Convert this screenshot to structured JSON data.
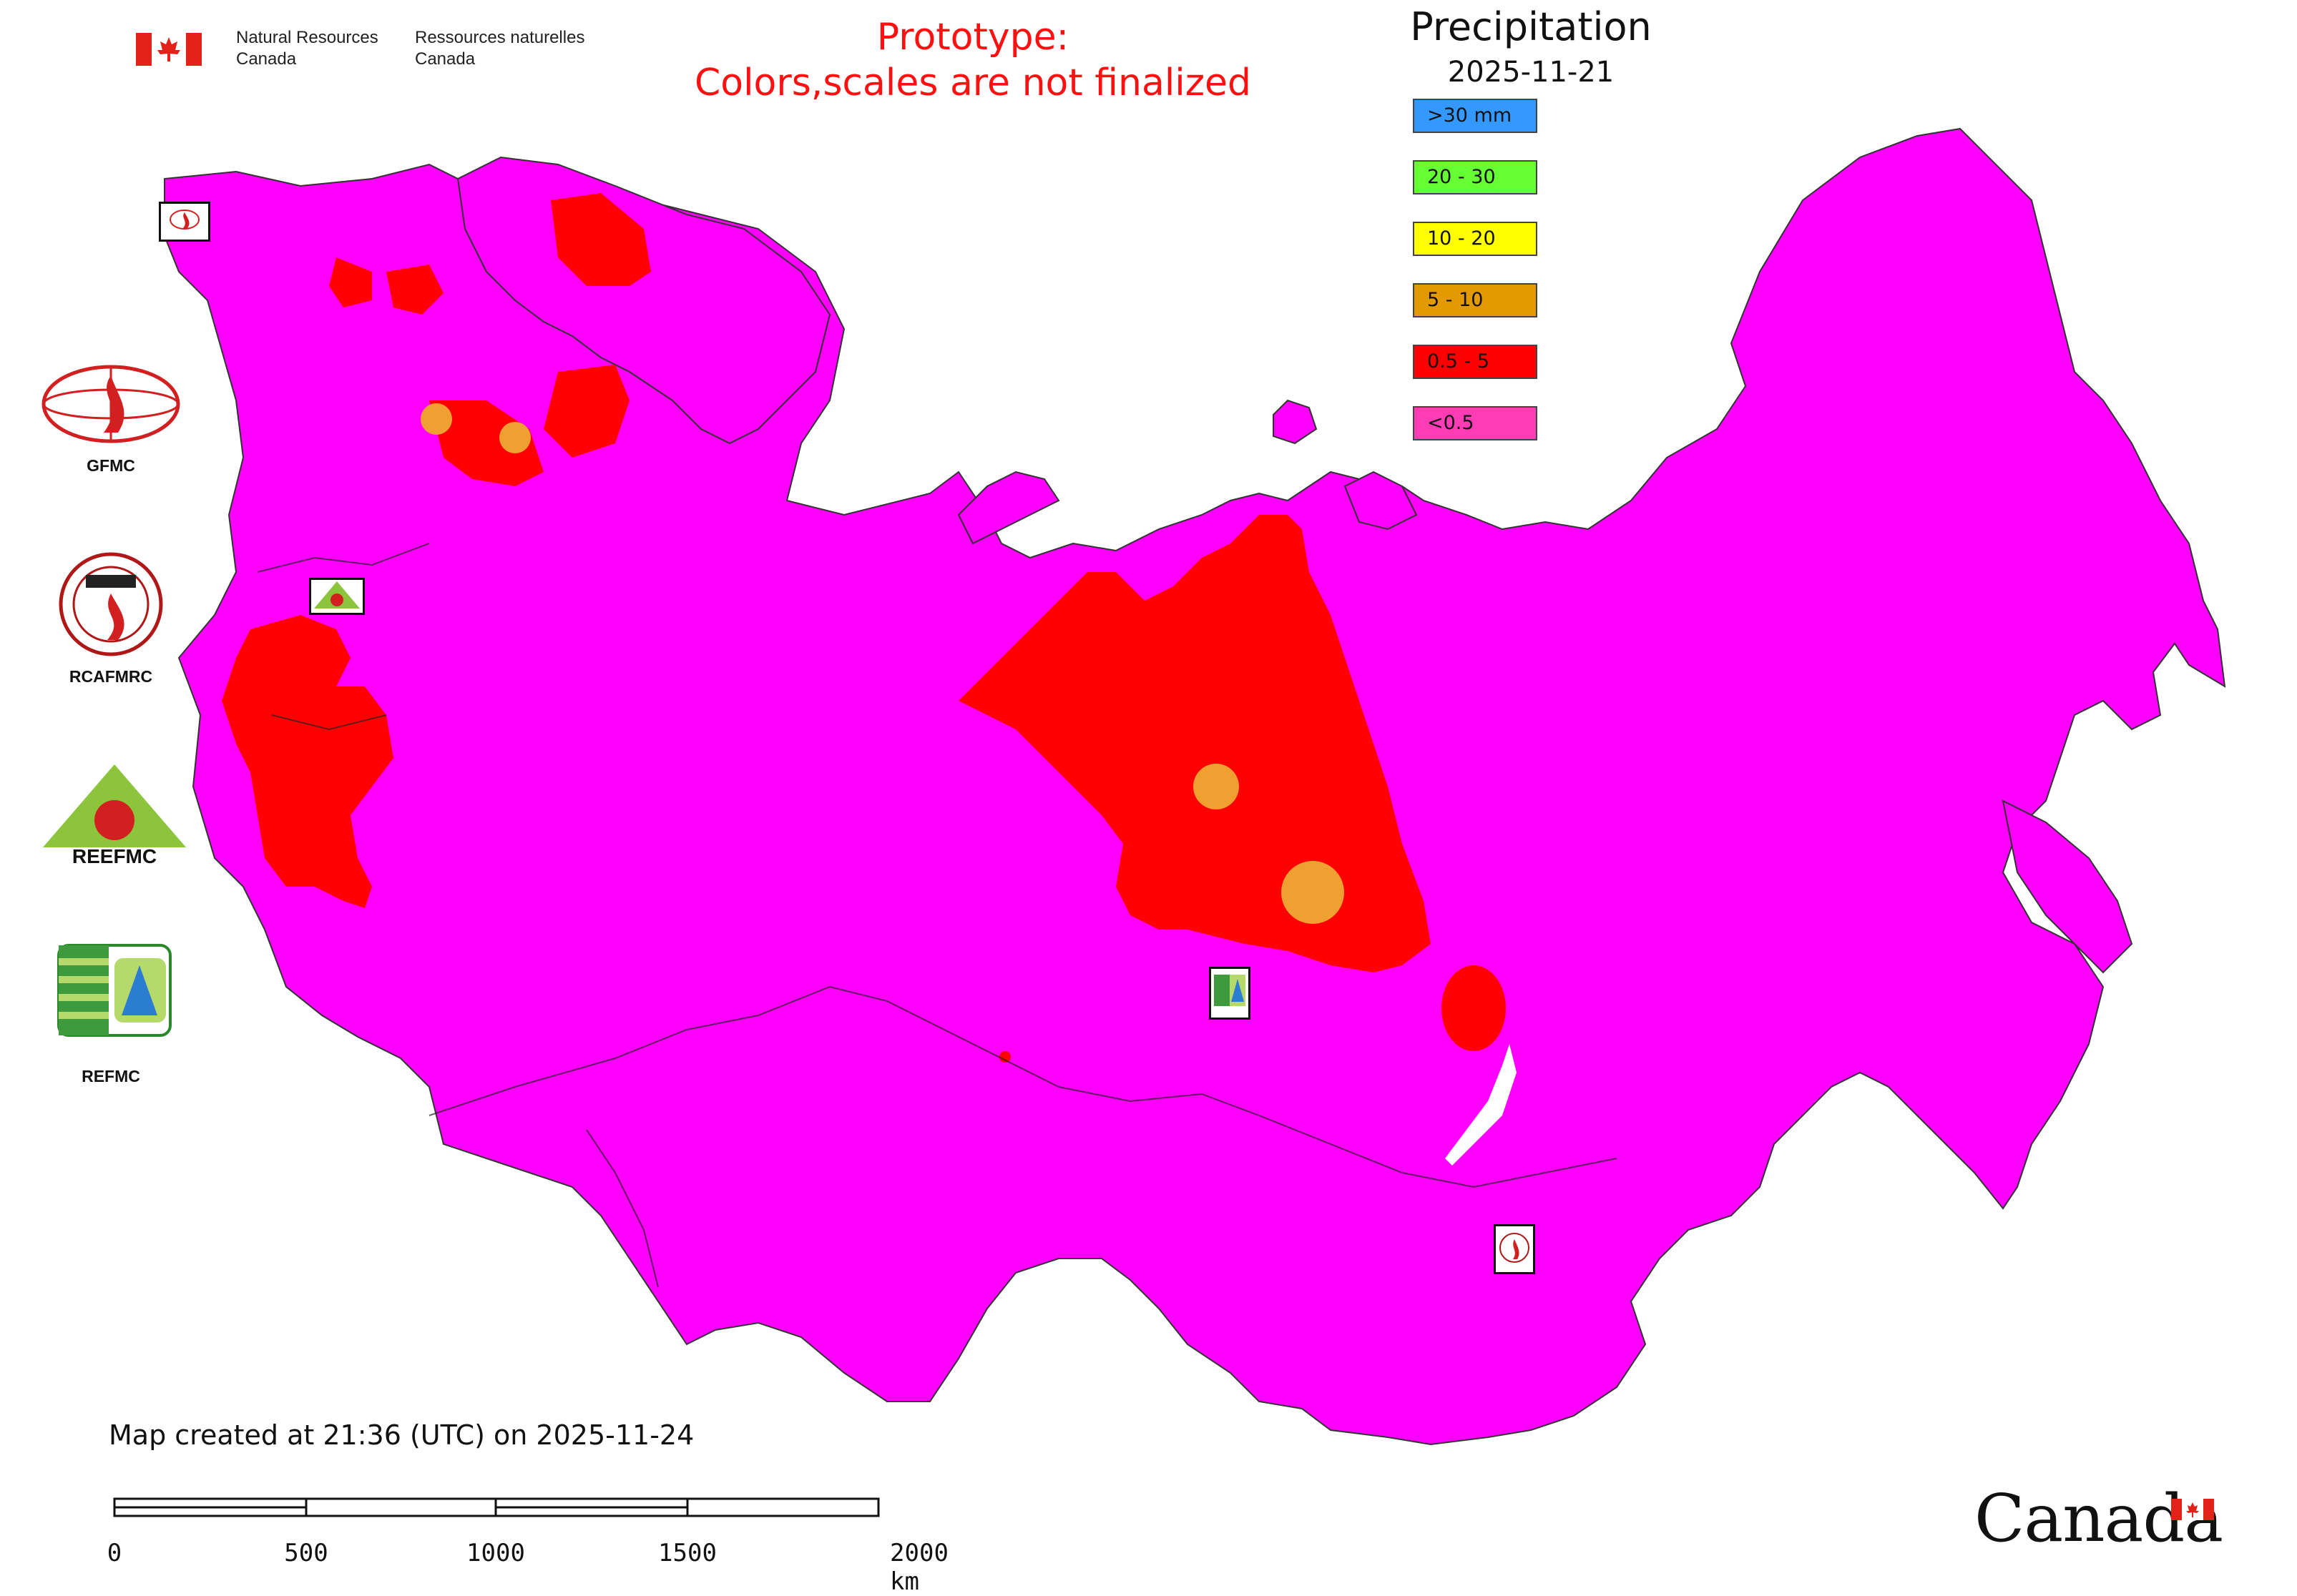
{
  "header": {
    "org_en_line1": "Natural Resources",
    "org_en_line2": "Canada",
    "org_fr_line1": "Ressources naturelles",
    "org_fr_line2": "Canada",
    "warning_line1": "Prototype:",
    "warning_line2": "Colors,scales are not finalized"
  },
  "legend": {
    "title": "Precipitation",
    "date": "2025-11-21",
    "items": [
      {
        "label": ">30 mm",
        "color": "#3399ff"
      },
      {
        "label": "20 - 30",
        "color": "#66ff33"
      },
      {
        "label": "10 - 20",
        "color": "#ffff00"
      },
      {
        "label": "5 - 10",
        "color": "#e39a00"
      },
      {
        "label": "0.5 - 5",
        "color": "#ff0000"
      },
      {
        "label": "<0.5",
        "color": "#ff3cb4"
      }
    ]
  },
  "map": {
    "background_color": "#ff00ff",
    "colors": {
      "low": "#ff00ff",
      "light": "#ff0000",
      "moderate": "#f0a030"
    }
  },
  "logos": [
    {
      "label": "GFMC"
    },
    {
      "label": "RCAFMRC"
    },
    {
      "label": "REEFMC"
    },
    {
      "label": "REFMC"
    }
  ],
  "footer": {
    "created": "Map created at 21:36 (UTC) on 2025-11-24",
    "scale_labels": [
      "0",
      "500",
      "1000",
      "1500",
      "2000 km"
    ],
    "wordmark": "Canada"
  }
}
